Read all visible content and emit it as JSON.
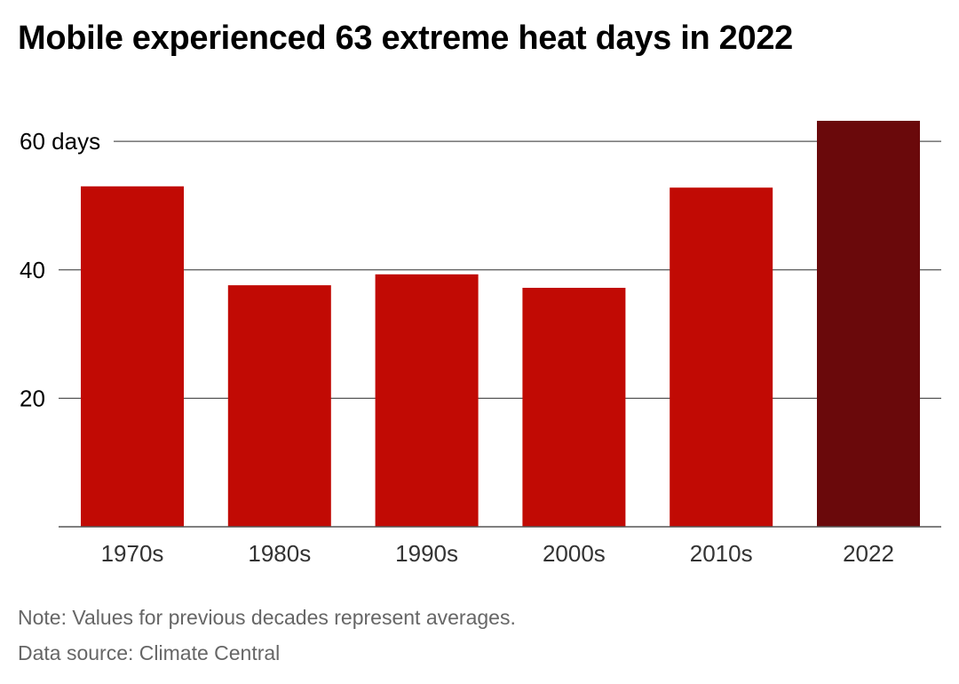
{
  "chart_data": {
    "type": "bar",
    "title": "Mobile experienced 63 extreme heat days in 2022",
    "categories": [
      "1970s",
      "1980s",
      "1990s",
      "2000s",
      "2010s",
      "2022"
    ],
    "values": [
      53,
      37.6,
      39.3,
      37.2,
      52.8,
      63.2
    ],
    "ylim": [
      0,
      63.2
    ],
    "yticks": [
      20,
      40,
      60
    ],
    "ytick_labels": [
      "20",
      "40",
      "60 days"
    ],
    "grid": true,
    "colors": {
      "bar": "#c10a04",
      "highlight_bar": "#6a090b",
      "gridline": "#555555",
      "axis": "#555555"
    },
    "highlight_category": "2022"
  },
  "footer": {
    "note": "Note: Values for previous decades represent averages.",
    "source": "Data source: Climate Central"
  }
}
